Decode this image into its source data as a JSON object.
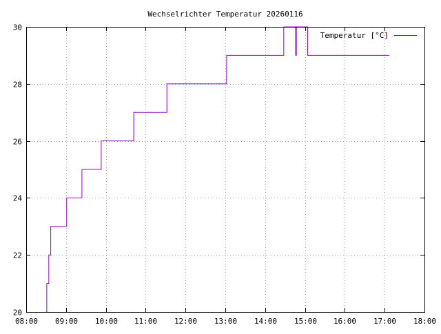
{
  "chart_data": {
    "type": "line",
    "title": "Wechselrichter Temperatur 20260116",
    "xlabel": "",
    "ylabel": "",
    "xlim": [
      "08:00",
      "18:00"
    ],
    "ylim": [
      20,
      30
    ],
    "x_ticks": [
      "08:00",
      "09:00",
      "10:00",
      "11:00",
      "12:00",
      "13:00",
      "14:00",
      "15:00",
      "16:00",
      "17:00",
      "18:00"
    ],
    "y_ticks": [
      20,
      22,
      24,
      26,
      28,
      30
    ],
    "grid": true,
    "legend_position": "top-right",
    "step": true,
    "series": [
      {
        "name": "Temperatur [°C]",
        "color": "#9400d3",
        "x": [
          "08:30",
          "08:31",
          "08:34",
          "08:37",
          "08:45",
          "09:01",
          "09:24",
          "09:53",
          "10:42",
          "11:32",
          "13:02",
          "14:28",
          "14:46",
          "14:47",
          "14:49",
          "15:04",
          "15:06",
          "17:07"
        ],
        "y": [
          20,
          21,
          22,
          23,
          23,
          24,
          25,
          26,
          27,
          28,
          29,
          30,
          29,
          30,
          30,
          29,
          29,
          29
        ]
      }
    ]
  }
}
